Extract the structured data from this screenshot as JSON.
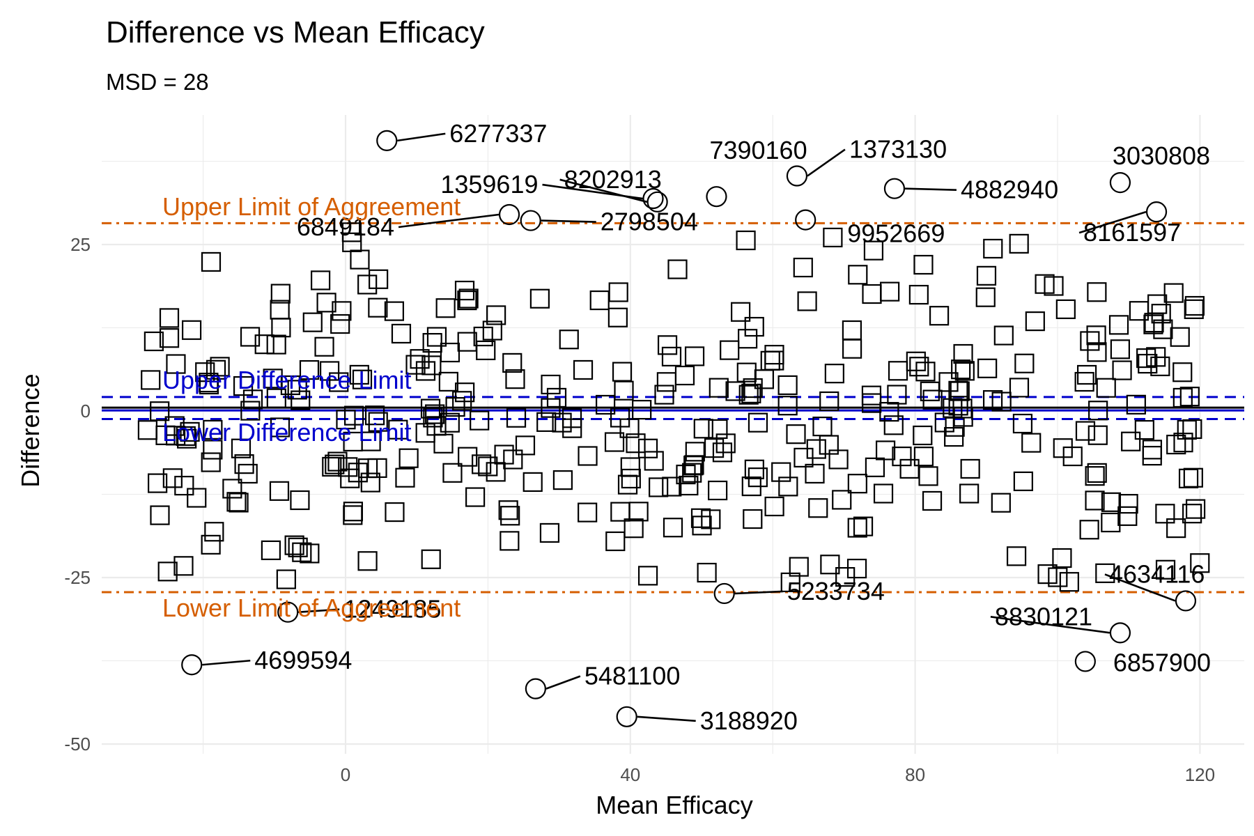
{
  "chart_data": {
    "type": "scatter",
    "title": "Difference vs Mean Efficacy",
    "subtitle": "MSD = 28",
    "xlabel": "Mean Efficacy",
    "ylabel": "Difference",
    "xlim": [
      -35,
      125
    ],
    "ylim": [
      -50,
      44
    ],
    "x_ticks": [
      0,
      40,
      80,
      120
    ],
    "y_ticks": [
      -50,
      -25,
      0,
      25
    ],
    "x_tick_labels": [
      "0",
      "40",
      "80",
      "120"
    ],
    "y_tick_labels": [
      "-50",
      "-25",
      "0",
      "25"
    ],
    "grid": true,
    "colors": {
      "agreement": "#d55e00",
      "difference": "#0000cd",
      "points": "#000000",
      "grid": "#ebebeb"
    },
    "reference_lines": {
      "mean_difference": 0.3,
      "upper_limit_of_agreement": 28.2,
      "lower_limit_of_agreement": -27.2,
      "upper_difference_limit": 2.1,
      "lower_difference_limit": -1.2
    },
    "reference_labels": {
      "upper_agreement": "Upper Limit of Aggreement",
      "lower_agreement": "Lower Limit of Aggreement",
      "upper_difference": "Upper Difference Limit",
      "lower_difference": "Lower Difference Limit"
    },
    "outliers": [
      {
        "x": 5.8,
        "y": 40.6,
        "label": "6277337"
      },
      {
        "x": 43.2,
        "y": 31.9,
        "label": "1359619"
      },
      {
        "x": 43.8,
        "y": 31.4,
        "label": "8202913"
      },
      {
        "x": 52.1,
        "y": 32.2,
        "label": "7390160"
      },
      {
        "x": 63.4,
        "y": 35.3,
        "label": "1373130"
      },
      {
        "x": 77.1,
        "y": 33.4,
        "label": "4882940"
      },
      {
        "x": 108.8,
        "y": 34.3,
        "label": "3030808"
      },
      {
        "x": 23.0,
        "y": 29.5,
        "label": "6849184"
      },
      {
        "x": 26.0,
        "y": 28.6,
        "label": "2798504"
      },
      {
        "x": 64.6,
        "y": 28.7,
        "label": "9952669"
      },
      {
        "x": 113.9,
        "y": 29.9,
        "label": "8161597"
      },
      {
        "x": 53.2,
        "y": -27.4,
        "label": "5233734"
      },
      {
        "x": 118.0,
        "y": -28.5,
        "label": "4634116"
      },
      {
        "x": 108.8,
        "y": -33.3,
        "label": "8830121"
      },
      {
        "x": 103.9,
        "y": -37.6,
        "label": "6857900"
      },
      {
        "x": -8.1,
        "y": -30.2,
        "label": "1249185"
      },
      {
        "x": -21.6,
        "y": -38.1,
        "label": "4699594"
      },
      {
        "x": 26.7,
        "y": -41.7,
        "label": "5481100"
      },
      {
        "x": 39.5,
        "y": -45.9,
        "label": "3188920"
      }
    ]
  }
}
